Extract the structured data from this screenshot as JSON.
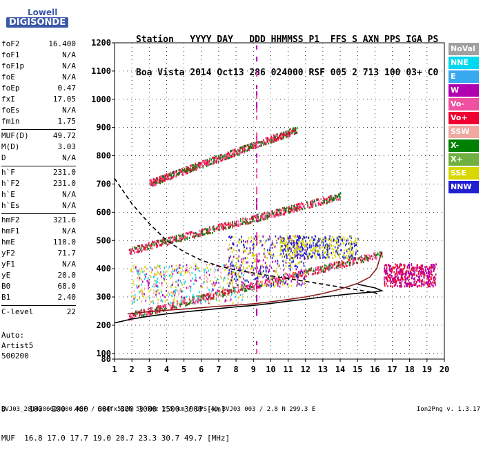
{
  "logo": {
    "brand": "Lowell",
    "product": "DIGISONDE"
  },
  "header": {
    "row1": "Station   YYYY DAY   DDD HHMMSS P1  FFS S AXN PPS IGA PS",
    "row2": "Boa Vista 2014 Oct13 286 024000 RSF 005 2 713 100 03+ C0"
  },
  "params": [
    {
      "name": "foF2",
      "value": "16.400"
    },
    {
      "name": "foF1",
      "value": "N/A"
    },
    {
      "name": "foF1p",
      "value": "N/A"
    },
    {
      "name": "foE",
      "value": "N/A"
    },
    {
      "name": "foEp",
      "value": "0.47"
    },
    {
      "name": "fxI",
      "value": "17.05"
    },
    {
      "name": "foEs",
      "value": "N/A"
    },
    {
      "name": "fmin",
      "value": "1.75"
    },
    {
      "sep": true
    },
    {
      "name": "MUF(D)",
      "value": "49.72"
    },
    {
      "name": "M(D)",
      "value": "3.03"
    },
    {
      "name": "D",
      "value": "N/A"
    },
    {
      "sep": true
    },
    {
      "name": "h`F",
      "value": "231.0"
    },
    {
      "name": "h`F2",
      "value": "231.0"
    },
    {
      "name": "h`E",
      "value": "N/A"
    },
    {
      "name": "h`Es",
      "value": "N/A"
    },
    {
      "sep": true
    },
    {
      "name": "hmF2",
      "value": "321.6"
    },
    {
      "name": "hmF1",
      "value": "N/A"
    },
    {
      "name": "hmE",
      "value": "110.0"
    },
    {
      "name": "yF2",
      "value": "71.7"
    },
    {
      "name": "yF1",
      "value": "N/A"
    },
    {
      "name": "yE",
      "value": "20.0"
    },
    {
      "name": "B0",
      "value": "68.0"
    },
    {
      "name": "B1",
      "value": "2.40"
    },
    {
      "sep": true
    },
    {
      "name": "C-level",
      "value": "22"
    }
  ],
  "auto": {
    "line1": "Auto:",
    "line2": "Artist5",
    "line3": "500200"
  },
  "legend": [
    {
      "label": "NoVal",
      "color": "#a0a0a0"
    },
    {
      "label": "NNE",
      "color": "#00d8f0"
    },
    {
      "label": "E",
      "color": "#38a8f0"
    },
    {
      "label": "W",
      "color": "#b000b0"
    },
    {
      "label": "Vo-",
      "color": "#f050a0"
    },
    {
      "label": "Vo+",
      "color": "#f00030"
    },
    {
      "label": "SSW",
      "color": "#f0a8a0"
    },
    {
      "label": "X-",
      "color": "#008000"
    },
    {
      "label": "X+",
      "color": "#70b040"
    },
    {
      "label": "SSE",
      "color": "#d8d800"
    },
    {
      "label": "NNW",
      "color": "#2020d0"
    }
  ],
  "bottom": {
    "row1": "D     100  200  400  600  800 1000 1500 3000 [km]",
    "row2": "MUF  16.8 17.0 17.7 19.0 20.7 23.3 30.7 49.7 [MHz]"
  },
  "footer": "BVJ03_2014286024000.RSF / 384fx512h 50 kHz 2.5 km / DPS-4D BVJ03 003 / 2.8 N 299.3 E",
  "version": "Ion2Png v. 1.3.17",
  "chart_data": {
    "type": "scatter",
    "xlim": [
      1,
      20
    ],
    "ylim": [
      80,
      1200
    ],
    "x_ticks": [
      1,
      2,
      3,
      4,
      5,
      6,
      7,
      8,
      9,
      10,
      11,
      12,
      13,
      14,
      15,
      16,
      17,
      18,
      19,
      20
    ],
    "y_ticks": [
      80,
      100,
      200,
      300,
      400,
      500,
      600,
      700,
      800,
      900,
      1000,
      1100,
      1200
    ],
    "grid": true,
    "traces": [
      {
        "name": "O-trace profile",
        "color": "#000000",
        "style": "dashed",
        "points": [
          [
            1,
            720
          ],
          [
            2,
            630
          ],
          [
            3,
            560
          ],
          [
            4,
            500
          ],
          [
            5,
            460
          ],
          [
            6,
            430
          ],
          [
            7,
            410
          ],
          [
            8,
            395
          ],
          [
            9,
            385
          ],
          [
            10,
            375
          ],
          [
            11,
            365
          ],
          [
            12,
            355
          ],
          [
            13,
            345
          ],
          [
            14,
            335
          ],
          [
            15,
            325
          ],
          [
            16,
            315
          ],
          [
            16.3,
            305
          ]
        ]
      },
      {
        "name": "Echo trace",
        "color": "#000000",
        "style": "solid",
        "points": [
          [
            1,
            208
          ],
          [
            2,
            222
          ],
          [
            3,
            232
          ],
          [
            4,
            240
          ],
          [
            5,
            247
          ],
          [
            6,
            253
          ],
          [
            7,
            259
          ],
          [
            8,
            265
          ],
          [
            9,
            270
          ],
          [
            10,
            277
          ],
          [
            11,
            285
          ],
          [
            12,
            292
          ],
          [
            13,
            300
          ],
          [
            14,
            307
          ],
          [
            15,
            313
          ],
          [
            16,
            318
          ],
          [
            16.4,
            322
          ],
          [
            16,
            332
          ],
          [
            15,
            345
          ]
        ]
      },
      {
        "name": "F2 O-echo",
        "color": "#8b1a1a",
        "style": "solid",
        "points": [
          [
            1.75,
            240
          ],
          [
            3,
            248
          ],
          [
            4,
            253
          ],
          [
            5,
            257
          ],
          [
            6,
            262
          ],
          [
            7,
            267
          ],
          [
            8,
            271
          ],
          [
            9,
            276
          ],
          [
            10,
            283
          ],
          [
            11,
            291
          ],
          [
            12,
            300
          ],
          [
            13,
            312
          ],
          [
            14,
            328
          ],
          [
            15,
            348
          ],
          [
            15.7,
            370
          ],
          [
            16.1,
            400
          ],
          [
            16.4,
            460
          ]
        ]
      }
    ],
    "scatter_bands": [
      {
        "x": [
          1.8,
          16.4
        ],
        "y_at_start": 235,
        "y_at_end": 455,
        "colors": [
          "#f00030",
          "#f050a0",
          "#008000"
        ]
      },
      {
        "x": [
          1.8,
          14.0
        ],
        "y_at_start": 465,
        "y_at_end": 660,
        "colors": [
          "#f00030",
          "#f050a0",
          "#008000"
        ]
      },
      {
        "x": [
          3.0,
          11.5
        ],
        "y_at_start": 705,
        "y_at_end": 895,
        "colors": [
          "#f00030",
          "#f050a0",
          "#008000"
        ]
      }
    ],
    "scatter_clusters": [
      {
        "x": [
          1.9,
          8.5
        ],
        "y": [
          280,
          420
        ],
        "colors": [
          "#b000b0",
          "#f0a8a0",
          "#d8d800",
          "#00d8f0"
        ]
      },
      {
        "x": [
          7.5,
          12.0
        ],
        "y": [
          340,
          520
        ],
        "colors": [
          "#2020d0",
          "#b000b0",
          "#d8d800"
        ]
      },
      {
        "x": [
          10.5,
          15.0
        ],
        "y": [
          440,
          520
        ],
        "colors": [
          "#d8d800",
          "#2020d0"
        ]
      },
      {
        "x": [
          16.5,
          19.5
        ],
        "y": [
          340,
          420
        ],
        "colors": [
          "#b000b0",
          "#f00030"
        ]
      }
    ]
  }
}
